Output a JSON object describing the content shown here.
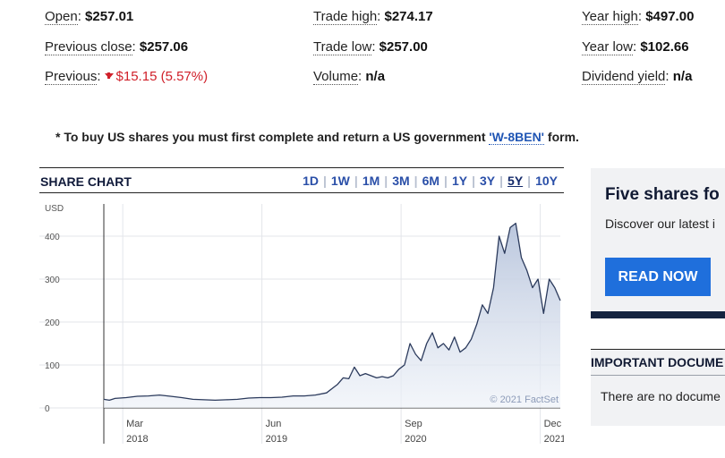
{
  "stats": {
    "open": {
      "label": "Open",
      "value": "$257.01"
    },
    "trade_high": {
      "label": "Trade high",
      "value": "$274.17"
    },
    "year_high": {
      "label": "Year high",
      "value": "$497.00"
    },
    "previous_close": {
      "label": "Previous close",
      "value": "$257.06"
    },
    "trade_low": {
      "label": "Trade low",
      "value": "$257.00"
    },
    "year_low": {
      "label": "Year low",
      "value": "$102.66"
    },
    "previous": {
      "label": "Previous",
      "value": "$15.15 (5.57%)"
    },
    "volume": {
      "label": "Volume",
      "value": "n/a"
    },
    "dividend_yield": {
      "label": "Dividend yield",
      "value": "n/a"
    }
  },
  "notice": {
    "text_before": "* To buy US shares you must first complete and return a US government ",
    "link": "'W-8BEN'",
    "text_after": " form."
  },
  "share_chart": {
    "title": "SHARE CHART",
    "ranges": [
      "1D",
      "1W",
      "1M",
      "3M",
      "6M",
      "1Y",
      "3Y",
      "5Y",
      "10Y"
    ],
    "active_range": "5Y",
    "credit": "© 2021 FactSet"
  },
  "chart_data": {
    "type": "area",
    "ylabel": "USD",
    "ylim": [
      0,
      475
    ],
    "yticks": [
      0,
      100,
      200,
      300,
      400
    ],
    "x_ticks": [
      {
        "month": "Mar",
        "year": "2018",
        "t": 2018.17
      },
      {
        "month": "Jun",
        "year": "2019",
        "t": 2019.42
      },
      {
        "month": "Sep",
        "year": "2020",
        "t": 2020.67
      },
      {
        "month": "Dec",
        "year": "2021",
        "t": 2021.92
      }
    ],
    "x_range": [
      2018.0,
      2022.1
    ],
    "series": [
      {
        "x": [
          2018.0,
          2018.05,
          2018.1,
          2018.2,
          2018.3,
          2018.4,
          2018.5,
          2018.6,
          2018.7,
          2018.8,
          2018.9,
          2019.0,
          2019.1,
          2019.2,
          2019.3,
          2019.4,
          2019.5,
          2019.6,
          2019.7,
          2019.8,
          2019.9,
          2020.0,
          2020.05,
          2020.1,
          2020.15,
          2020.2,
          2020.25,
          2020.3,
          2020.35,
          2020.4,
          2020.45,
          2020.5,
          2020.55,
          2020.6,
          2020.65,
          2020.7,
          2020.75,
          2020.8,
          2020.85,
          2020.9,
          2020.95,
          2021.0,
          2021.05,
          2021.1,
          2021.15,
          2021.2,
          2021.25,
          2021.3,
          2021.35,
          2021.4,
          2021.45,
          2021.5,
          2021.55,
          2021.6,
          2021.65,
          2021.7,
          2021.75,
          2021.8,
          2021.85,
          2021.9,
          2021.95,
          2022.0,
          2022.05,
          2022.1
        ],
        "values": [
          20,
          18,
          22,
          24,
          27,
          28,
          30,
          27,
          24,
          20,
          19,
          18,
          19,
          20,
          23,
          24,
          24,
          25,
          28,
          28,
          30,
          35,
          45,
          55,
          70,
          68,
          95,
          75,
          80,
          75,
          70,
          73,
          70,
          75,
          90,
          100,
          150,
          125,
          110,
          150,
          175,
          140,
          150,
          135,
          165,
          130,
          140,
          160,
          195,
          240,
          220,
          280,
          400,
          360,
          420,
          430,
          350,
          320,
          280,
          300,
          220,
          300,
          280,
          250
        ]
      }
    ]
  },
  "promo": {
    "title": "Five shares fo",
    "text": "Discover our latest i",
    "button": "READ NOW"
  },
  "documents": {
    "heading": "IMPORTANT DOCUME",
    "text": "There are no docume"
  },
  "colors": {
    "accent": "#1f6fdc",
    "link": "#1f55b4",
    "negative": "#d0202a",
    "navy": "#14233f",
    "chart_line": "#2b3a5c",
    "chart_fill_top": "#b7c4dc"
  }
}
